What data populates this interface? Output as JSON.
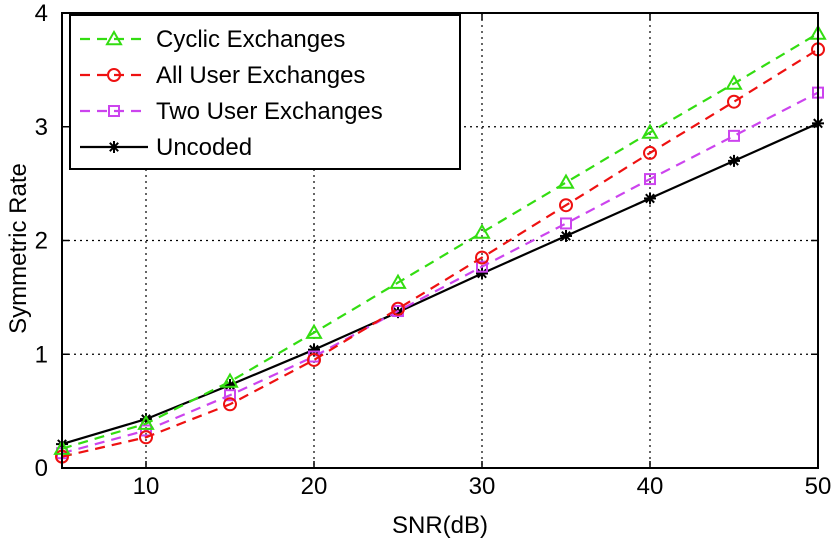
{
  "chart_data": {
    "type": "line",
    "title": "",
    "xlabel": "SNR(dB)",
    "ylabel": "Symmetric Rate",
    "xlim": [
      5,
      50
    ],
    "ylim": [
      0,
      4
    ],
    "xticks": [
      10,
      20,
      30,
      40,
      50
    ],
    "yticks": [
      0,
      1,
      2,
      3,
      4
    ],
    "grid": true,
    "legend_position": "top-left",
    "x": [
      5,
      10,
      15,
      20,
      25,
      30,
      35,
      40,
      45,
      50
    ],
    "series": [
      {
        "name": "Cyclic Exchanges",
        "color": "#33dd11",
        "line_style": "dashed",
        "marker": "triangle",
        "values": [
          0.17,
          0.39,
          0.76,
          1.19,
          1.63,
          2.07,
          2.51,
          2.95,
          3.38,
          3.82
        ]
      },
      {
        "name": "All User Exchanges",
        "color": "#ee1111",
        "line_style": "dashed",
        "marker": "circle",
        "values": [
          0.1,
          0.27,
          0.56,
          0.95,
          1.4,
          1.85,
          2.31,
          2.77,
          3.22,
          3.68
        ]
      },
      {
        "name": "Two User Exchanges",
        "color": "#cc44ee",
        "line_style": "dashed",
        "marker": "square",
        "values": [
          0.13,
          0.33,
          0.64,
          0.98,
          1.38,
          1.77,
          2.15,
          2.54,
          2.92,
          3.3
        ]
      },
      {
        "name": "Uncoded",
        "color": "#000000",
        "line_style": "solid",
        "marker": "star",
        "values": [
          0.21,
          0.43,
          0.73,
          1.04,
          1.37,
          1.71,
          2.04,
          2.37,
          2.7,
          3.03
        ]
      }
    ]
  }
}
